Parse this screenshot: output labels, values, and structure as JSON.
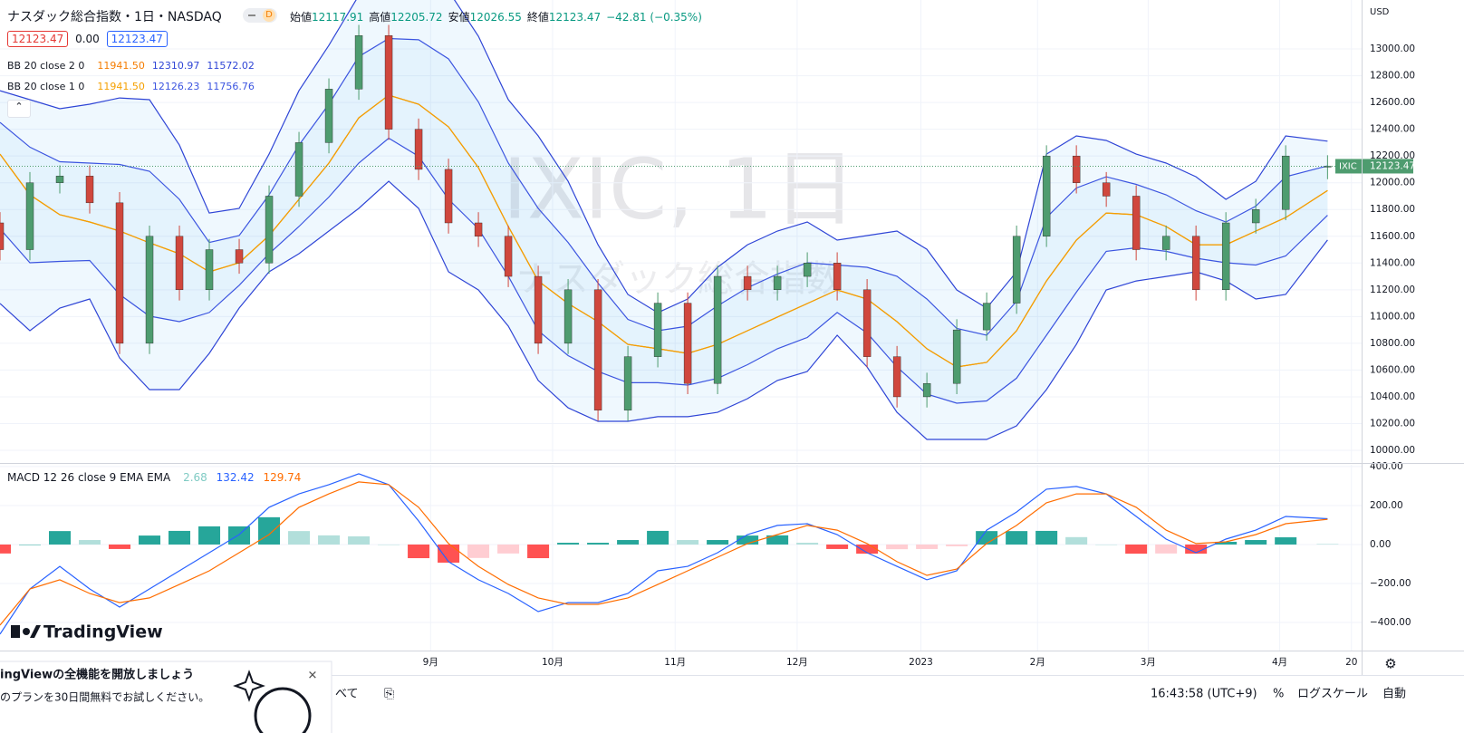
{
  "ui": {
    "symbol_title": "ナスダック総合指数・1日・NASDAQ",
    "interval_badge": "D",
    "ohlc_labels": [
      "始値",
      "高値",
      "安値",
      "終値"
    ],
    "change_text": "−42.81 (−0.35%)",
    "mid_value": "0.00",
    "currency": "USD",
    "watermark_symbol": "IXIC, 1日",
    "watermark_name": "ナスダック総合指数",
    "price_tag_symbol": "IXIC",
    "logo": "TradingView",
    "footer": {
      "tab": "べて",
      "clock": "16:43:58 (UTC+9)",
      "percent": "%",
      "log": "ログスケール",
      "auto": "自動"
    },
    "promo": {
      "title": "ingViewの全機能を開放しましょう",
      "body": "のプランを30日間無料でお試しください。"
    }
  },
  "chart_data": [
    {
      "type": "candlestick",
      "x": [
        0,
        5,
        10,
        15,
        20,
        25,
        30,
        35,
        40,
        45,
        50,
        55,
        60,
        65,
        70,
        75,
        80,
        85,
        90,
        95,
        100,
        105,
        110,
        115,
        120,
        125,
        130,
        135,
        140,
        145,
        150,
        155,
        160,
        165,
        170,
        175,
        180,
        185,
        190,
        195,
        200,
        205,
        210,
        215,
        222
      ],
      "open": [
        11700,
        11500,
        12000,
        12050,
        11850,
        10800,
        11600,
        11200,
        11500,
        11400,
        11900,
        12300,
        12700,
        13100,
        12400,
        12100,
        11700,
        11600,
        11300,
        10800,
        11200,
        10300,
        10700,
        11100,
        10500,
        11300,
        11200,
        11300,
        11400,
        11200,
        10700,
        10400,
        10500,
        10900,
        11100,
        11600,
        12200,
        12000,
        11900,
        11500,
        11600,
        11200,
        11700,
        11800,
        12117.91
      ],
      "high": [
        11780,
        12080,
        12130,
        12130,
        11930,
        11680,
        11680,
        11580,
        11580,
        11980,
        12380,
        12780,
        13180,
        13180,
        12480,
        12180,
        11780,
        11680,
        11380,
        11280,
        11280,
        10780,
        11180,
        11180,
        11380,
        11380,
        11380,
        11480,
        11480,
        11280,
        10780,
        10580,
        10980,
        11180,
        11680,
        12280,
        12280,
        12080,
        11980,
        11680,
        11680,
        11780,
        11880,
        12280,
        12205.72
      ],
      "low": [
        11420,
        11420,
        11920,
        11770,
        10720,
        10720,
        11120,
        11120,
        11320,
        11320,
        11820,
        12220,
        12620,
        12320,
        12020,
        11620,
        11520,
        11220,
        10720,
        10720,
        10220,
        10220,
        10620,
        10420,
        10420,
        11120,
        11120,
        11220,
        11120,
        10620,
        10320,
        10320,
        10420,
        10820,
        11020,
        11520,
        11920,
        11820,
        11420,
        11420,
        11120,
        11120,
        11620,
        11720,
        12026.55
      ],
      "close": [
        11500,
        12000,
        12050,
        11850,
        10800,
        11600,
        11200,
        11500,
        11400,
        11900,
        12300,
        12700,
        13100,
        12400,
        12100,
        11700,
        11600,
        11300,
        10800,
        11200,
        10300,
        10700,
        11100,
        10500,
        11300,
        11200,
        11300,
        11400,
        11200,
        10700,
        10400,
        10500,
        10900,
        11100,
        11600,
        12200,
        12000,
        11900,
        11500,
        11600,
        11200,
        11700,
        11800,
        12200,
        12123.47
      ],
      "up_color": "#4e9c6f",
      "down_color": "#d0473d",
      "indicators": [
        {
          "name": "BB 20 close 2 0",
          "fill": "rgba(33,150,243,0.07)",
          "lines": [
            {
              "color": "#f57c00",
              "last_label": "11941.50",
              "values": [
                12214,
                11910,
                11761,
                11707,
                11639,
                11551,
                11470,
                11334,
                11402,
                11605,
                11876,
                12147,
                12485,
                12655,
                12587,
                12418,
                12113,
                11673,
                11266,
                11097,
                10962,
                10792,
                10759,
                10725,
                10792,
                10894,
                10996,
                11097,
                11199,
                11131,
                10962,
                10759,
                10623,
                10657,
                10894,
                11266,
                11571,
                11774,
                11761,
                11673,
                11537,
                11537,
                11639,
                11740,
                11941.5
              ]
            },
            {
              "color": "#2f45d6",
              "last_label": "12310.97",
              "values": [
                12688,
                12621,
                12553,
                12587,
                12634,
                12621,
                12282,
                11774,
                11808,
                12214,
                12688,
                13027,
                13400,
                13500,
                13550,
                13434,
                13095,
                12621,
                12350,
                12011,
                11537,
                11165,
                11029,
                11131,
                11368,
                11537,
                11639,
                11707,
                11571,
                11605,
                11639,
                11503,
                11199,
                11063,
                11334,
                12214,
                12350,
                12316,
                12214,
                12147,
                12045,
                11876,
                12011,
                12350,
                12310.97
              ]
            },
            {
              "color": "#2f45d6",
              "last_label": "11572.02",
              "values": [
                11097,
                10894,
                11063,
                11131,
                10691,
                10454,
                10454,
                10725,
                11063,
                11334,
                11470,
                11639,
                11808,
                12011,
                11808,
                11334,
                11199,
                10928,
                10522,
                10318,
                10217,
                10217,
                10251,
                10251,
                10284,
                10386,
                10522,
                10589,
                10860,
                10623,
                10284,
                10081,
                10081,
                10081,
                10183,
                10454,
                10792,
                11199,
                11266,
                11300,
                11334,
                11266,
                11131,
                11165,
                11572.02
              ]
            }
          ]
        },
        {
          "name": "BB 20 close 1 0",
          "fill": "rgba(33,150,243,0.05)",
          "lines": [
            {
              "color": "#f5a000",
              "last_label": "11941.50",
              "values": [
                12214,
                11910,
                11761,
                11707,
                11639,
                11551,
                11470,
                11334,
                11402,
                11605,
                11876,
                12147,
                12485,
                12655,
                12587,
                12418,
                12113,
                11673,
                11266,
                11097,
                10962,
                10792,
                10759,
                10725,
                10792,
                10894,
                10996,
                11097,
                11199,
                11131,
                10962,
                10759,
                10623,
                10657,
                10894,
                11266,
                11571,
                11774,
                11761,
                11673,
                11537,
                11537,
                11639,
                11740,
                11941.5
              ]
            },
            {
              "color": "#3c55e0",
              "last_label": "12126.23",
              "values": [
                12451,
                12266,
                12157,
                12147,
                12137,
                12086,
                11876,
                11554,
                11605,
                11910,
                12282,
                12587,
                12943,
                13078,
                13069,
                12926,
                12604,
                12147,
                11808,
                11554,
                11250,
                10979,
                10894,
                10928,
                11080,
                11216,
                11318,
                11402,
                11385,
                11368,
                11301,
                11131,
                10911,
                10860,
                11114,
                11740,
                11961,
                12045,
                11988,
                11910,
                11791,
                11707,
                11825,
                12045,
                12126.23
              ]
            },
            {
              "color": "#3c55e0",
              "last_label": "11756.76",
              "values": [
                11656,
                11402,
                11412,
                11419,
                11165,
                11003,
                10962,
                11030,
                11233,
                11470,
                11673,
                11893,
                12147,
                12333,
                12198,
                11876,
                11656,
                11301,
                10894,
                10708,
                10590,
                10505,
                10505,
                10488,
                10538,
                10640,
                10759,
                10843,
                11030,
                10877,
                10623,
                10420,
                10352,
                10369,
                10539,
                10860,
                11182,
                11487,
                11514,
                11487,
                11436,
                11402,
                11385,
                11453,
                11756.76
              ]
            }
          ]
        }
      ],
      "xlim": [
        0,
        227.7
      ],
      "ylim": [
        9912,
        13366
      ],
      "yticks": [
        {
          "value": 10000,
          "label": "10000.00"
        },
        {
          "value": 10200,
          "label": "10200.00"
        },
        {
          "value": 10400,
          "label": "10400.00"
        },
        {
          "value": 10600,
          "label": "10600.00"
        },
        {
          "value": 10800,
          "label": "10800.00"
        },
        {
          "value": 11000,
          "label": "11000.00"
        },
        {
          "value": 11200,
          "label": "11200.00"
        },
        {
          "value": 11400,
          "label": "11400.00"
        },
        {
          "value": 11600,
          "label": "11600.00"
        },
        {
          "value": 11800,
          "label": "11800.00"
        },
        {
          "value": 12000,
          "label": "12000.00"
        },
        {
          "value": 12200,
          "label": "12200.00"
        },
        {
          "value": 12400,
          "label": "12400.00"
        },
        {
          "value": 12600,
          "label": "12600.00"
        },
        {
          "value": 12800,
          "label": "12800.00"
        },
        {
          "value": 13000,
          "label": "13000.00"
        }
      ],
      "xticks": [
        {
          "value": 72,
          "label": "9月"
        },
        {
          "value": 92.4,
          "label": "10月"
        },
        {
          "value": 112.9,
          "label": "11月"
        },
        {
          "value": 133.3,
          "label": "12月"
        },
        {
          "value": 154,
          "label": "2023"
        },
        {
          "value": 173.5,
          "label": "2月"
        },
        {
          "value": 192,
          "label": "3月"
        },
        {
          "value": 214,
          "label": "4月"
        },
        {
          "value": 226,
          "label": "20"
        }
      ],
      "grid": true
    },
    {
      "type": "macd",
      "title": "MACD 12 26 close 9 EMA EMA",
      "x": [
        0,
        5,
        10,
        15,
        20,
        25,
        30,
        35,
        40,
        45,
        50,
        55,
        60,
        65,
        70,
        75,
        80,
        85,
        90,
        95,
        100,
        105,
        110,
        115,
        120,
        125,
        130,
        135,
        140,
        145,
        150,
        155,
        160,
        165,
        170,
        175,
        180,
        185,
        190,
        195,
        200,
        205,
        210,
        215,
        222
      ],
      "histogram": [
        -46,
        0,
        69,
        23,
        -23,
        46,
        70,
        93,
        93,
        140,
        69,
        47,
        42,
        0,
        -70,
        -93,
        -69,
        -46,
        -70,
        9,
        9,
        23,
        70,
        23,
        23,
        46,
        47,
        9,
        -23,
        -47,
        -24,
        -23,
        -9,
        69,
        69,
        70,
        38,
        0,
        -47,
        -46,
        -47,
        14,
        23,
        37,
        2.68
      ],
      "hist_colors": {
        "up_strong": "#26a69a",
        "up_weak": "#b2dfdb",
        "down_strong": "#ff5252",
        "down_weak": "#ffcdd2"
      },
      "series": [
        {
          "color": "#2962ff",
          "values": [
            -460,
            -228,
            -112,
            -228,
            -321,
            -228,
            -135,
            -42,
            51,
            191,
            260,
            307,
            363,
            307,
            121,
            -88,
            -181,
            -251,
            -344,
            -298,
            -298,
            -251,
            -135,
            -112,
            -42,
            51,
            98,
            107,
            51,
            -42,
            -112,
            -181,
            -135,
            74,
            167,
            284,
            298,
            260,
            144,
            28,
            -42,
            28,
            74,
            144,
            132.42
          ]
        },
        {
          "color": "#ff6d00",
          "values": [
            -414,
            -228,
            -181,
            -251,
            -298,
            -274,
            -205,
            -135,
            -42,
            51,
            191,
            260,
            321,
            307,
            191,
            5,
            -112,
            -205,
            -274,
            -307,
            -307,
            -274,
            -205,
            -135,
            -65,
            5,
            51,
            98,
            74,
            5,
            -88,
            -158,
            -126,
            5,
            98,
            214,
            260,
            260,
            191,
            74,
            5,
            14,
            51,
            107,
            129.74
          ]
        }
      ],
      "xlim": [
        0,
        227.7
      ],
      "ylim": [
        -544,
        409
      ],
      "yticks": [
        {
          "value": -400,
          "label": "−400.00"
        },
        {
          "value": -200,
          "label": "−200.00"
        },
        {
          "value": 0,
          "label": "0.00"
        },
        {
          "value": 200,
          "label": "200.00"
        },
        {
          "value": 400,
          "label": "400.00"
        }
      ],
      "grid": true
    }
  ]
}
